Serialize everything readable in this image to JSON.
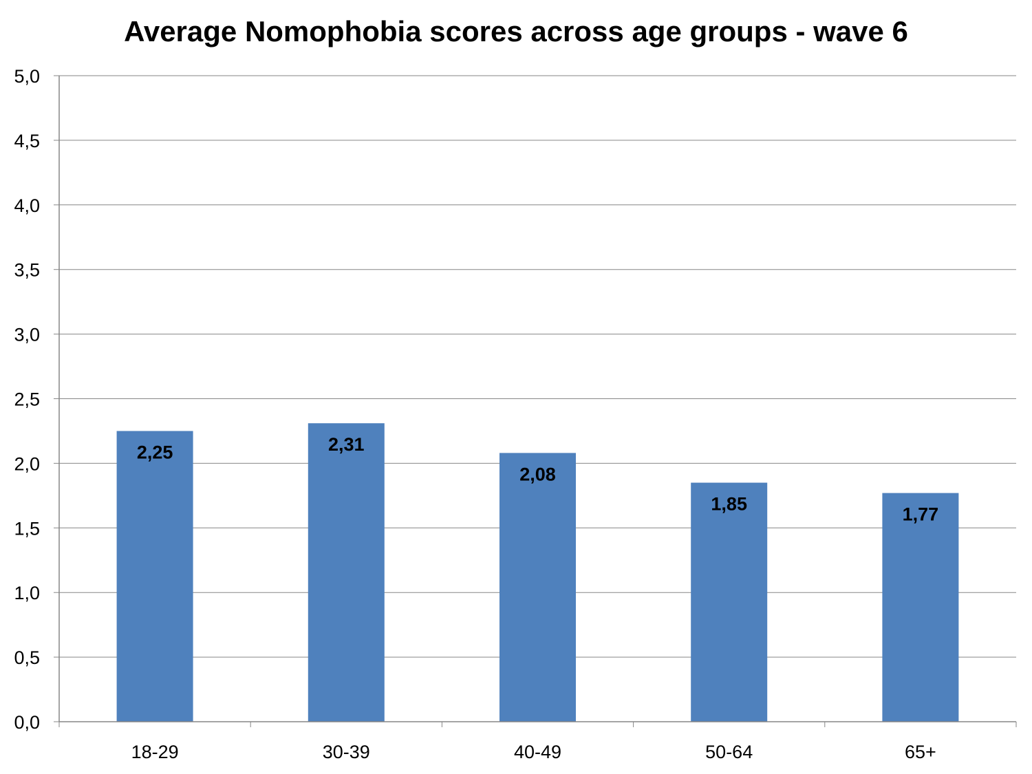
{
  "chart_data": {
    "type": "bar",
    "title": "Average Nomophobia scores across age groups - wave 6",
    "xlabel": "",
    "ylabel": "",
    "categories": [
      "18-29",
      "30-39",
      "40-49",
      "50-64",
      "65+"
    ],
    "values": [
      2.25,
      2.31,
      2.08,
      1.85,
      1.77
    ],
    "value_labels": [
      "2,25",
      "2,31",
      "2,08",
      "1,85",
      "1,77"
    ],
    "ylim": [
      0,
      5
    ],
    "yticks": [
      "0,0",
      "0,5",
      "1,0",
      "1,5",
      "2,0",
      "2,5",
      "3,0",
      "3,5",
      "4,0",
      "4,5",
      "5,0"
    ],
    "grid": true,
    "legend": "none",
    "colors": {
      "bar": "#4f81bd",
      "grid": "#868686",
      "axis": "#868686"
    }
  }
}
